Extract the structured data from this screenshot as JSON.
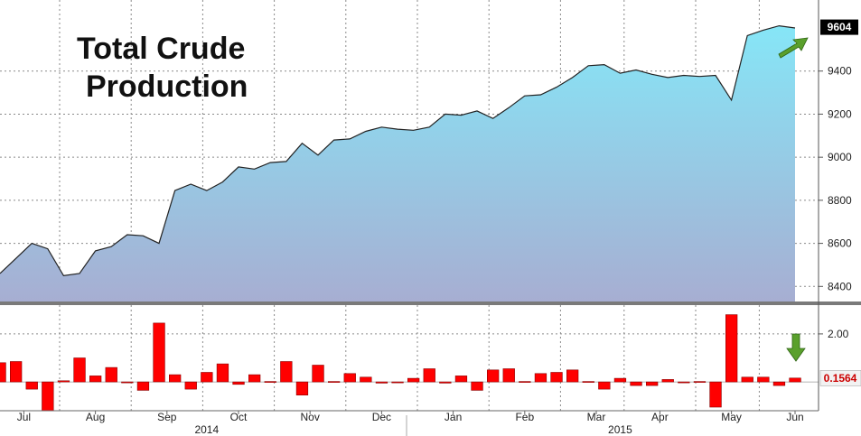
{
  "chart_data": [
    {
      "type": "area",
      "title_lines": [
        "Total Crude",
        "Production"
      ],
      "ylim": [
        8330,
        9730
      ],
      "yticks": [
        8400,
        8600,
        8800,
        9000,
        9200,
        9400
      ],
      "callout": {
        "label": "9604",
        "value": 9604
      },
      "annotation": "green-arrow-up-right",
      "x": [
        0,
        1,
        2,
        3,
        4,
        5,
        6,
        7,
        8,
        9,
        10,
        11,
        12,
        13,
        14,
        15,
        16,
        17,
        18,
        19,
        20,
        21,
        22,
        23,
        24,
        25,
        26,
        27,
        28,
        29,
        30,
        31,
        32,
        33,
        34,
        35,
        36,
        37,
        38,
        39,
        40,
        41,
        42,
        43,
        44,
        45,
        46,
        47,
        48,
        49,
        50
      ],
      "values": [
        8460,
        8530,
        8600,
        8575,
        8450,
        8460,
        8565,
        8585,
        8640,
        8635,
        8600,
        8845,
        8875,
        8845,
        8885,
        8955,
        8945,
        8975,
        8980,
        9065,
        9010,
        9080,
        9085,
        9120,
        9140,
        9130,
        9125,
        9140,
        9200,
        9195,
        9215,
        9180,
        9230,
        9285,
        9290,
        9325,
        9370,
        9425,
        9430,
        9390,
        9405,
        9385,
        9370,
        9380,
        9375,
        9380,
        9265,
        9565,
        9590,
        9610,
        9600
      ],
      "colors": {
        "line": "#222222",
        "fill_top": "#86e6f7",
        "fill_bottom": "#a7aed2",
        "callout_bg": "#000000",
        "callout_text": "#ffffff",
        "arrow": "#5aa02c"
      }
    },
    {
      "type": "bar",
      "title": "",
      "ylim": [
        -1.2,
        3.2
      ],
      "yticks": [
        2.0
      ],
      "ytick_labels": [
        "2.00"
      ],
      "callout": {
        "label": "0.1564",
        "value": 0.1564
      },
      "annotation": "green-arrow-down",
      "x": [
        0,
        1,
        2,
        3,
        4,
        5,
        6,
        7,
        8,
        9,
        10,
        11,
        12,
        13,
        14,
        15,
        16,
        17,
        18,
        19,
        20,
        21,
        22,
        23,
        24,
        25,
        26,
        27,
        28,
        29,
        30,
        31,
        32,
        33,
        34,
        35,
        36,
        37,
        38,
        39,
        40,
        41,
        42,
        43,
        44,
        45,
        46,
        47,
        48,
        49,
        50
      ],
      "values": [
        0.8,
        0.85,
        -0.3,
        -1.2,
        0.05,
        1.0,
        0.25,
        0.6,
        0,
        -0.35,
        2.45,
        0.3,
        -0.3,
        0.4,
        0.75,
        -0.1,
        0.3,
        0.02,
        0.85,
        -0.55,
        0.7,
        0.02,
        0.35,
        0.2,
        -0.05,
        0,
        0.15,
        0.55,
        -0.05,
        0.25,
        -0.35,
        0.5,
        0.55,
        0.02,
        0.35,
        0.4,
        0.5,
        0.02,
        -0.3,
        0.15,
        -0.15,
        -0.15,
        0.1,
        0,
        0.02,
        -1.05,
        2.8,
        0.2,
        0.2,
        -0.15,
        0.16
      ],
      "colors": {
        "bar": "#ff0000",
        "bar_edge": "#8b0000",
        "callout_bg": "#f2f2f2",
        "callout_text": "#cc0000",
        "arrow": "#5aa02c"
      }
    }
  ],
  "x_axis": {
    "month_ticks": [
      {
        "label": "Jul",
        "x": 1.5
      },
      {
        "label": "Aug",
        "x": 6
      },
      {
        "label": "Sep",
        "x": 10.5
      },
      {
        "label": "Oct",
        "x": 15
      },
      {
        "label": "Nov",
        "x": 19.5
      },
      {
        "label": "Dec",
        "x": 24
      },
      {
        "label": "Jan",
        "x": 28.5
      },
      {
        "label": "Feb",
        "x": 33
      },
      {
        "label": "Mar",
        "x": 37.5
      },
      {
        "label": "Apr",
        "x": 41.5
      },
      {
        "label": "May",
        "x": 46
      },
      {
        "label": "Jun",
        "x": 50
      }
    ],
    "year_ticks": [
      {
        "label": "2014",
        "x": 13
      },
      {
        "label": "2015",
        "x": 39
      }
    ]
  }
}
